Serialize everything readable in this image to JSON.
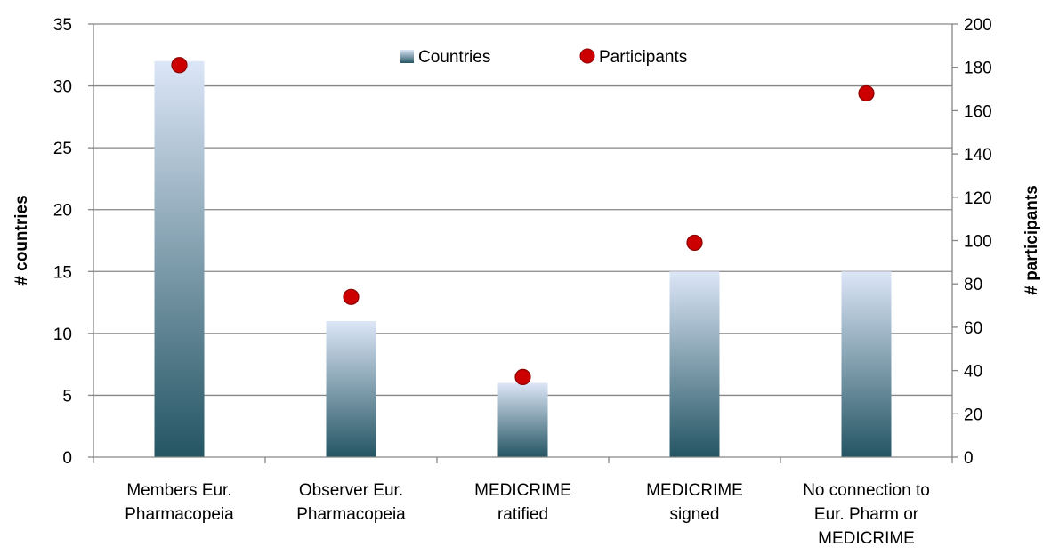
{
  "chart_data": {
    "type": "bar",
    "categories": [
      [
        "Members Eur.",
        "Pharmacopeia"
      ],
      [
        "Observer Eur.",
        "Pharmacopeia"
      ],
      [
        "MEDICRIME",
        "ratified"
      ],
      [
        "MEDICRIME",
        "signed"
      ],
      [
        "No connection to",
        "Eur. Pharm or",
        "MEDICRIME"
      ]
    ],
    "series": [
      {
        "name": "Countries",
        "type": "bar",
        "axis": "left",
        "values": [
          32,
          11,
          6,
          15,
          15
        ]
      },
      {
        "name": "Participants",
        "type": "scatter",
        "axis": "right",
        "values": [
          181,
          74,
          37,
          99,
          168
        ]
      }
    ],
    "ylabel": "# countries",
    "y2label": "# participants",
    "ylim": [
      0,
      35
    ],
    "y2lim": [
      0,
      200
    ],
    "yticks": [
      "0",
      "5",
      "10",
      "15",
      "20",
      "25",
      "30",
      "35"
    ],
    "y2ticks": [
      "0",
      "20",
      "40",
      "60",
      "80",
      "100",
      "120",
      "140",
      "160",
      "180",
      "200"
    ],
    "grid": true,
    "legend_position": "top-center",
    "colors": {
      "bar_top": "#dce6f7",
      "bar_bottom": "#245563",
      "marker": "#cc0000",
      "marker_edge": "#8b0000",
      "grid": "#868686",
      "axis": "#868686"
    }
  }
}
